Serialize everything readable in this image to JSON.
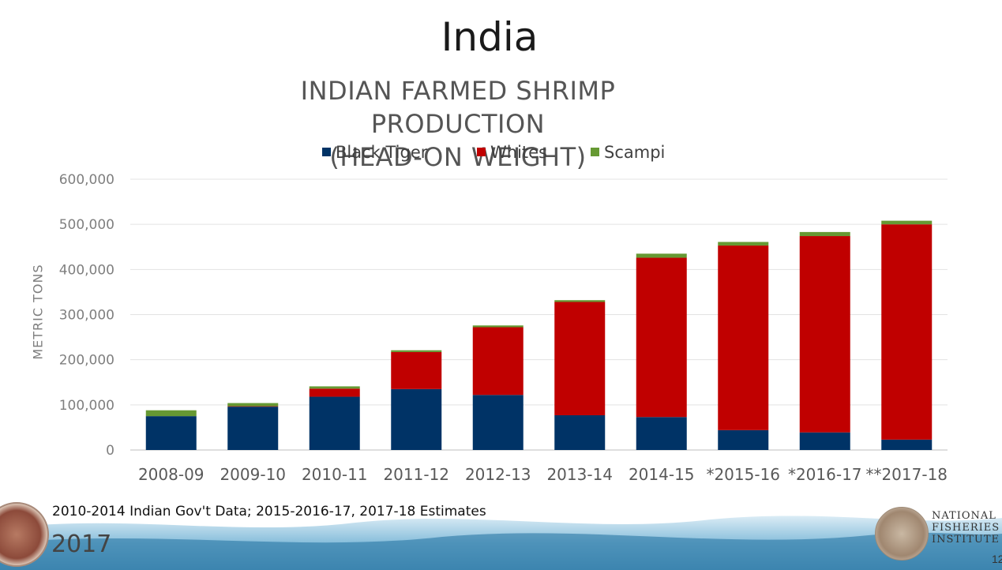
{
  "slide": {
    "title": "India",
    "footnote": "2010-2014 Indian Gov't Data; 2015-2016-17, 2017-18 Estimates",
    "year": "2017",
    "slide_number": "12",
    "logo_text_lines": [
      "NATIONAL",
      "FISHERIES",
      "INSTITUTE"
    ]
  },
  "chart_data": {
    "type": "bar",
    "stacked": true,
    "title_lines": [
      "INDIAN FARMED SHRIMP PRODUCTION",
      "(HEAD-ON WEIGHT)"
    ],
    "ylabel": "METRIC TONS",
    "xlabel": "",
    "ylim": [
      0,
      600000
    ],
    "yticks": [
      0,
      100000,
      200000,
      300000,
      400000,
      500000,
      600000
    ],
    "ytick_labels": [
      "0",
      "100,000",
      "200,000",
      "300,000",
      "400,000",
      "500,000",
      "600,000"
    ],
    "grid": true,
    "legend_position": "top-center",
    "categories": [
      "2008-09",
      "2009-10",
      "2010-11",
      "2011-12",
      "2012-13",
      "2013-14",
      "2014-15",
      "*2015-16",
      "*2016-17",
      "**2017-18"
    ],
    "series": [
      {
        "name": "Black Tiger",
        "color": "#003366",
        "values": [
          75000,
          96000,
          118000,
          135000,
          122000,
          77000,
          73000,
          44000,
          39000,
          23000
        ]
      },
      {
        "name": "Whites",
        "color": "#c00000",
        "values": [
          0,
          1000,
          18000,
          82000,
          150000,
          251000,
          353000,
          409000,
          435000,
          477000
        ]
      },
      {
        "name": "Scampi",
        "color": "#669933",
        "values": [
          13000,
          7000,
          5000,
          4000,
          4000,
          4000,
          9000,
          8000,
          9000,
          8000
        ]
      }
    ]
  }
}
